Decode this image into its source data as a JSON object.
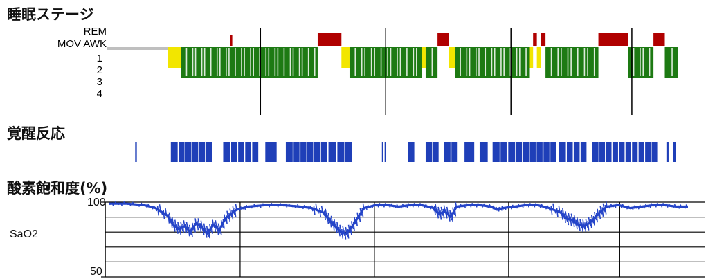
{
  "sections": {
    "sleep_stage_title": "睡眠ステージ",
    "arousal_title": "覚醒反応",
    "spo2_title": "酸素飽和度(%)"
  },
  "colors": {
    "rem": "#b00000",
    "stage1": "#f2e600",
    "stage2": "#1d7a13",
    "stage3": "#2f8fd0",
    "stage4": "#1a2f8a",
    "mov_awk": "#bfbfbf",
    "arousal": "#1f3fb8",
    "spo2_line": "#2444c8",
    "grid": "#000000"
  },
  "chart_data": [
    {
      "type": "bar",
      "name_hint": "hypnogram",
      "title": "睡眠ステージ",
      "y_levels": [
        {
          "label": "REM",
          "color": "#b00000"
        },
        {
          "label": "MOV AWK",
          "color": "#111111"
        },
        {
          "label": "1",
          "color": "#c8b400"
        },
        {
          "label": "2",
          "color": "#1d7a13"
        },
        {
          "label": "3",
          "color": "#2f8fd0"
        },
        {
          "label": "4",
          "color": "#1a2f8a"
        }
      ],
      "x_range": [
        0,
        100
      ],
      "segments": [
        {
          "stage": "MOV AWK",
          "start": 0.0,
          "end": 5.5
        },
        {
          "stage": "1",
          "start": 5.5,
          "end": 7.9
        },
        {
          "stage": "2",
          "start": 7.9,
          "end": 33.2
        },
        {
          "stage": "REM",
          "start": 33.2,
          "end": 37.6
        },
        {
          "stage": "1",
          "start": 37.6,
          "end": 39.1
        },
        {
          "stage": "2",
          "start": 39.1,
          "end": 52.5
        },
        {
          "stage": "1",
          "start": 52.5,
          "end": 53.2
        },
        {
          "stage": "2",
          "start": 53.2,
          "end": 55.4
        },
        {
          "stage": "REM",
          "start": 55.4,
          "end": 57.5
        },
        {
          "stage": "1",
          "start": 57.5,
          "end": 58.6
        },
        {
          "stage": "2",
          "start": 58.6,
          "end": 72.5
        },
        {
          "stage": "1",
          "start": 72.5,
          "end": 73.1
        },
        {
          "stage": "REM",
          "start": 73.1,
          "end": 73.8
        },
        {
          "stage": "1",
          "start": 73.8,
          "end": 74.6
        },
        {
          "stage": "REM",
          "start": 74.6,
          "end": 75.4
        },
        {
          "stage": "2",
          "start": 75.4,
          "end": 85.2
        },
        {
          "stage": "REM",
          "start": 85.2,
          "end": 90.7
        },
        {
          "stage": "2",
          "start": 90.7,
          "end": 95.4
        },
        {
          "stage": "REM",
          "start": 95.4,
          "end": 97.5
        },
        {
          "stage": "2",
          "start": 97.5,
          "end": 100.0
        }
      ],
      "extra_rem_marks": [
        17.0
      ],
      "hour_markers": [
        22.6,
        45.8,
        69.0,
        91.4
      ]
    },
    {
      "type": "bar",
      "name_hint": "arousal-events",
      "title": "覚醒反応",
      "x_range": [
        0,
        100
      ],
      "blocks": [
        {
          "start": -0.6,
          "end": -0.3
        },
        {
          "start": 6.0,
          "end": 13.6
        },
        {
          "start": 15.7,
          "end": 22.2
        },
        {
          "start": 23.5,
          "end": 25.6
        },
        {
          "start": 27.3,
          "end": 34.9
        },
        {
          "start": 35.2,
          "end": 39.6
        },
        {
          "start": 45.1,
          "end": 45.3
        },
        {
          "start": 45.6,
          "end": 45.8
        },
        {
          "start": 50.0,
          "end": 51.1
        },
        {
          "start": 53.2,
          "end": 55.6
        },
        {
          "start": 56.6,
          "end": 59.0
        },
        {
          "start": 60.4,
          "end": 62.2
        },
        {
          "start": 63.2,
          "end": 64.7
        },
        {
          "start": 65.6,
          "end": 68.2
        },
        {
          "start": 68.5,
          "end": 77.4
        },
        {
          "start": 77.9,
          "end": 83.0
        },
        {
          "start": 84.0,
          "end": 96.1
        },
        {
          "start": 97.8,
          "end": 98.2
        },
        {
          "start": 99.1,
          "end": 99.6
        }
      ]
    },
    {
      "type": "line",
      "name_hint": "spo2",
      "title": "酸素飽和度(%)",
      "ylabel": "SaO2",
      "ylim": [
        50,
        100
      ],
      "yticks": [
        100,
        50
      ],
      "x_range": [
        0,
        100
      ],
      "grid": true,
      "gridlines_y": [
        100,
        90,
        80,
        70,
        60,
        50
      ],
      "gridlines_x": [
        22.6,
        45.8,
        69.0,
        88.2
      ],
      "x": [
        0,
        3,
        6,
        8,
        10,
        11,
        12,
        13,
        14,
        15,
        16,
        17,
        18,
        19,
        20,
        21,
        22,
        24,
        27,
        30,
        33,
        35,
        37,
        38,
        39,
        40,
        41,
        42,
        43,
        44,
        46,
        48,
        50,
        52,
        54,
        56,
        57,
        58,
        59,
        60,
        62,
        64,
        66,
        67,
        68,
        70,
        72,
        74,
        76,
        78,
        79,
        80,
        81,
        82,
        83,
        84,
        85,
        86,
        88,
        90,
        92,
        94,
        96,
        98,
        100
      ],
      "values": [
        99,
        99,
        98,
        96,
        91,
        85,
        82,
        84,
        80,
        86,
        83,
        79,
        85,
        81,
        89,
        92,
        95,
        97,
        98,
        98,
        97,
        96,
        93,
        88,
        84,
        80,
        79,
        84,
        90,
        96,
        98,
        98,
        97,
        98,
        98,
        96,
        92,
        94,
        90,
        97,
        98,
        98,
        97,
        95,
        96,
        97,
        98,
        98,
        96,
        93,
        89,
        88,
        85,
        84,
        86,
        90,
        94,
        97,
        98,
        96,
        97,
        98,
        98,
        97,
        97
      ]
    }
  ]
}
